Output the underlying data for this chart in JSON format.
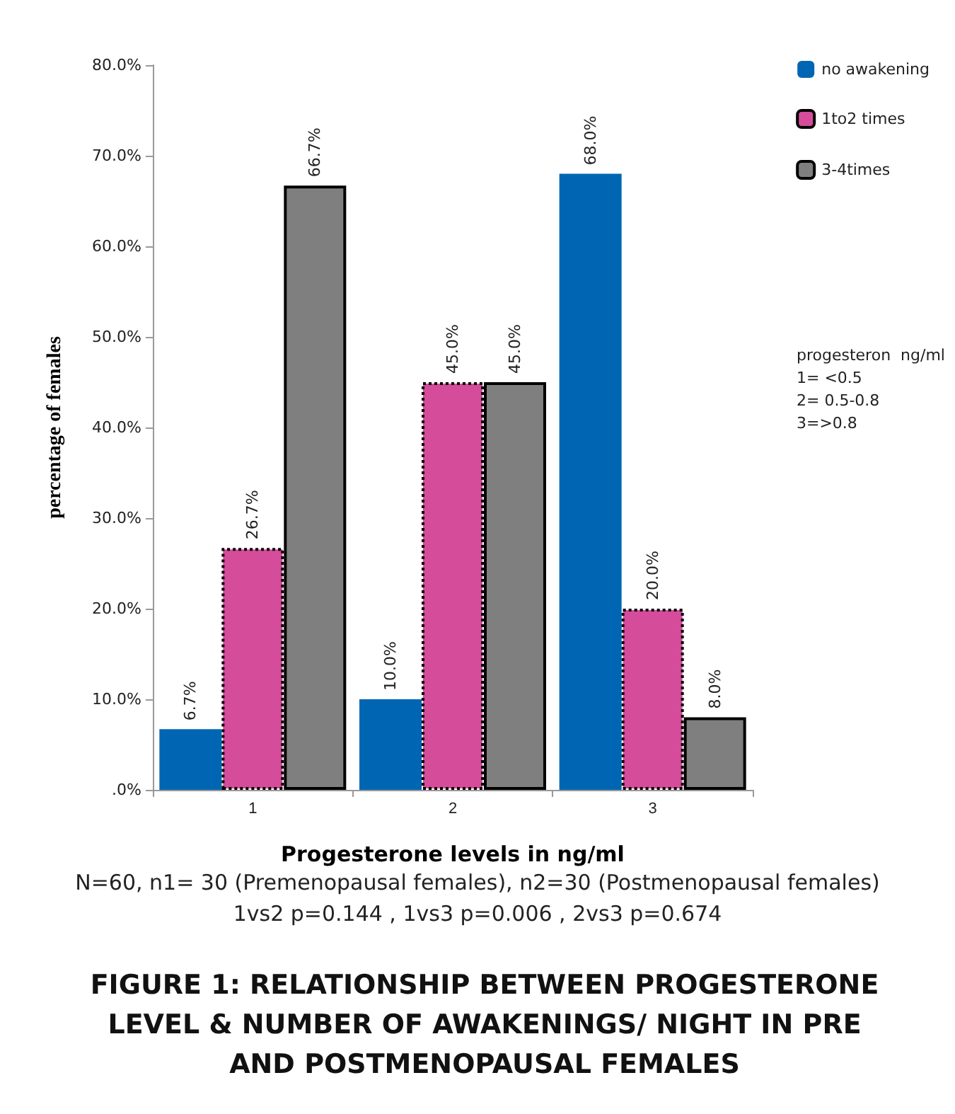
{
  "chart_data": {
    "type": "bar",
    "title": "FIGURE 1: RELATIONSHIP BETWEEN PROGESTERONE LEVEL & NUMBER OF AWAKENINGS/ NIGHT IN PRE AND POSTMENOPAUSAL FEMALES",
    "xlabel": "Progesterone levels in ng/ml",
    "ylabel": "percentage of females",
    "categories": [
      "1",
      "2",
      "3"
    ],
    "series": [
      {
        "name": "no awakening",
        "color": "#0066b3",
        "values": [
          6.7,
          10.0,
          68.0
        ],
        "value_labels": [
          "6.7%",
          "10.0%",
          "68.0%"
        ]
      },
      {
        "name": "1to2 times",
        "color": "#d44c9a",
        "values": [
          26.7,
          45.0,
          20.0
        ],
        "value_labels": [
          "26.7%",
          "45.0%",
          "20.0%"
        ],
        "line_style": "dotted"
      },
      {
        "name": "3-4times",
        "color": "#7f7f7f",
        "values": [
          66.7,
          45.0,
          8.0
        ],
        "value_labels": [
          "66.7%",
          "45.0%",
          "8.0%"
        ],
        "line_style": "solid"
      }
    ],
    "ylim": [
      0,
      80
    ],
    "yticks": [
      {
        "value": 0,
        "label": ".0%"
      },
      {
        "value": 10,
        "label": "10.0%"
      },
      {
        "value": 20,
        "label": "20.0%"
      },
      {
        "value": 30,
        "label": "30.0%"
      },
      {
        "value": 40,
        "label": "40.0%"
      },
      {
        "value": 50,
        "label": "50.0%"
      },
      {
        "value": 60,
        "label": "60.0%"
      },
      {
        "value": 70,
        "label": "70.0%"
      },
      {
        "value": 80,
        "label": "80.0%"
      }
    ],
    "grid": false,
    "legend": "right",
    "annotations": [
      "progesteron  ng/ml\n1= <0.5\n2= 0.5-0.8\n3=>0.8",
      "N=60, n1= 30 (Premenopausal females), n2=30 (Postmenopausal females)",
      "1vs2 p=0.144 , 1vs3 p=0.006 , 2vs3 p=0.674"
    ]
  }
}
